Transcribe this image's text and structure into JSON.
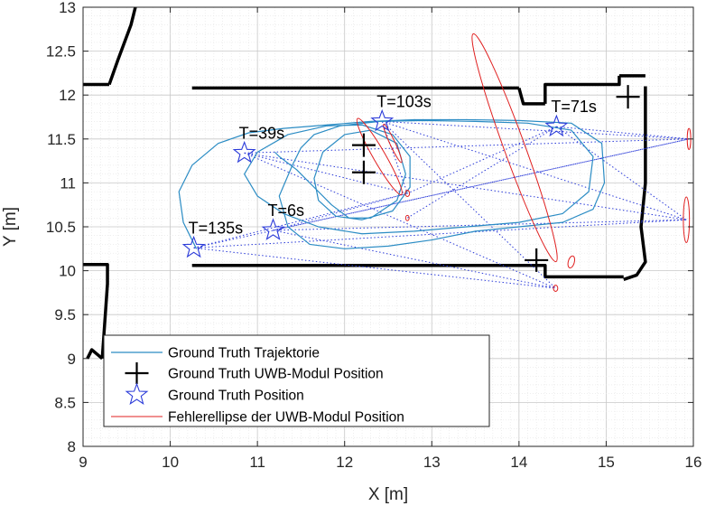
{
  "chart_data": {
    "type": "scatter",
    "xlabel": "X [m]",
    "ylabel": "Y [m]",
    "xlim": [
      9,
      16
    ],
    "ylim": [
      8,
      13
    ],
    "xticks": [
      9,
      10,
      11,
      12,
      13,
      14,
      15,
      16
    ],
    "yticks": [
      8,
      8.5,
      9,
      9.5,
      10,
      10.5,
      11,
      11.5,
      12,
      12.5,
      13
    ],
    "xtick_labels": [
      "9",
      "10",
      "11",
      "12",
      "13",
      "14",
      "15",
      "16"
    ],
    "ytick_labels": [
      "8",
      "8.5",
      "9",
      "9.5",
      "10",
      "10.5",
      "11",
      "11.5",
      "12",
      "12.5",
      "13"
    ],
    "grid": true,
    "legend_position": "bottom-left",
    "legend": [
      "Ground Truth Trajektorie",
      "Ground Truth UWB-Modul Position",
      "Ground Truth Position",
      "Fehlerellipse der UWB-Modul Position"
    ],
    "colors": {
      "trajectory": "#2b8cc4",
      "uwb_module": "#000000",
      "position_star": "#2b3bd9",
      "ellipse": "#e02020",
      "link": "#2b3bd9",
      "map": "#000000"
    },
    "series": [
      {
        "name": "Ground Truth Trajektorie",
        "kind": "line",
        "x": [
          10.3,
          10.15,
          10.1,
          10.25,
          10.55,
          10.9,
          11.3,
          11.8,
          12.3,
          12.8,
          13.4,
          14.0,
          14.6,
          14.95,
          14.98,
          14.85,
          14.5,
          14.0,
          13.5,
          13.0,
          12.5,
          12.0,
          11.6,
          11.35,
          11.25,
          11.4,
          11.5,
          11.65,
          11.95,
          12.4,
          12.9,
          13.5,
          14.1,
          14.6,
          14.85,
          14.8,
          14.5,
          14.0,
          13.4,
          12.8,
          12.2,
          11.7,
          11.3,
          11.0,
          10.85,
          11.0,
          11.35,
          11.8,
          12.2,
          12.55,
          12.75,
          12.75,
          12.55,
          12.2,
          11.9,
          11.7,
          11.65,
          11.75,
          12.0,
          12.3,
          12.6,
          12.7,
          12.6,
          12.3,
          12.05,
          11.85,
          11.65,
          11.45,
          11.25,
          11.2
        ],
        "y": [
          10.25,
          10.55,
          10.9,
          11.2,
          11.45,
          11.57,
          11.62,
          11.66,
          11.7,
          11.72,
          11.72,
          11.71,
          11.68,
          11.45,
          11.0,
          10.7,
          10.55,
          10.5,
          10.45,
          10.35,
          10.28,
          10.25,
          10.3,
          10.5,
          10.85,
          11.2,
          11.4,
          11.55,
          11.65,
          11.7,
          11.71,
          11.7,
          11.68,
          11.6,
          11.3,
          10.9,
          10.65,
          10.55,
          10.5,
          10.45,
          10.42,
          10.5,
          10.65,
          10.85,
          11.1,
          11.35,
          11.55,
          11.65,
          11.66,
          11.55,
          11.3,
          10.95,
          10.68,
          10.58,
          10.62,
          10.8,
          11.05,
          11.35,
          11.55,
          11.6,
          11.45,
          11.1,
          10.8,
          10.6,
          10.6,
          10.75,
          10.95,
          11.15,
          11.3,
          11.35
        ]
      },
      {
        "name": "Ground Truth UWB-Modul Position",
        "kind": "marker-plus",
        "x": [
          12.22,
          12.22,
          15.25,
          14.2
        ],
        "y": [
          11.43,
          11.12,
          11.98,
          10.12
        ]
      },
      {
        "name": "Ground Truth Position",
        "kind": "marker-star",
        "x": [
          11.18,
          10.85,
          14.43,
          12.43,
          10.27
        ],
        "y": [
          10.46,
          11.34,
          11.64,
          11.7,
          10.26
        ]
      },
      {
        "name": "Fehlerellipse der UWB-Modul Position",
        "kind": "ellipse",
        "cx": [
          13.95,
          12.4,
          15.92,
          12.55,
          15.95,
          14.6,
          14.42,
          12.72,
          12.72
        ],
        "cy": [
          11.4,
          11.3,
          10.58,
          11.45,
          11.5,
          10.1,
          9.8,
          10.88,
          10.6
        ],
        "rx": [
          0.12,
          0.07,
          0.035,
          0.03,
          0.02,
          0.035,
          0.025,
          0.025,
          0.02
        ],
        "ry": [
          1.38,
          0.5,
          0.26,
          0.24,
          0.12,
          0.07,
          0.035,
          0.035,
          0.03
        ],
        "angle_deg": [
          -20,
          -30,
          0,
          -25,
          0,
          15,
          0,
          0,
          0
        ]
      }
    ],
    "annotations": [
      {
        "text": "T=6s",
        "x": 11.18,
        "y": 10.46
      },
      {
        "text": "T=39s",
        "x": 10.85,
        "y": 11.34
      },
      {
        "text": "T=71s",
        "x": 14.43,
        "y": 11.64
      },
      {
        "text": "T=103s",
        "x": 12.43,
        "y": 11.7
      },
      {
        "text": "T=135s",
        "x": 10.27,
        "y": 10.26
      }
    ],
    "links": {
      "from": [
        [
          11.18,
          10.46
        ],
        [
          10.85,
          11.34
        ],
        [
          14.43,
          11.64
        ],
        [
          12.43,
          11.7
        ],
        [
          10.27,
          10.26
        ],
        [
          11.18,
          10.46
        ],
        [
          10.85,
          11.34
        ],
        [
          14.43,
          11.64
        ],
        [
          12.43,
          11.7
        ],
        [
          10.27,
          10.26
        ],
        [
          11.18,
          10.46
        ],
        [
          10.85,
          11.34
        ],
        [
          12.43,
          11.7
        ],
        [
          10.27,
          10.26
        ],
        [
          11.18,
          10.46
        ],
        [
          10.85,
          11.34
        ],
        [
          14.43,
          11.64
        ],
        [
          12.43,
          11.7
        ],
        [
          10.27,
          10.26
        ],
        [
          14.43,
          11.64
        ]
      ],
      "to": [
        [
          15.92,
          10.58
        ],
        [
          15.92,
          10.58
        ],
        [
          15.92,
          10.58
        ],
        [
          15.92,
          10.58
        ],
        [
          15.92,
          10.58
        ],
        [
          15.95,
          11.5
        ],
        [
          15.95,
          11.5
        ],
        [
          15.95,
          11.5
        ],
        [
          15.95,
          11.5
        ],
        [
          15.95,
          11.5
        ],
        [
          14.42,
          9.8
        ],
        [
          14.42,
          9.8
        ],
        [
          14.42,
          9.8
        ],
        [
          14.42,
          9.8
        ],
        [
          12.72,
          10.88
        ],
        [
          12.72,
          10.88
        ],
        [
          12.72,
          10.88
        ],
        [
          12.72,
          10.88
        ],
        [
          12.72,
          10.88
        ],
        [
          12.72,
          10.6
        ]
      ]
    },
    "map_walls": [
      {
        "x": [
          10.25,
          14.0
        ],
        "y": [
          12.08,
          12.08
        ]
      },
      {
        "x": [
          14.0,
          14.05,
          14.3
        ],
        "y": [
          12.08,
          11.9,
          11.9
        ]
      },
      {
        "x": [
          14.3,
          14.3,
          15.15,
          15.15
        ],
        "y": [
          11.9,
          12.12,
          12.12,
          12.22
        ]
      },
      {
        "x": [
          15.15,
          15.45
        ],
        "y": [
          12.22,
          12.22
        ]
      },
      {
        "x": [
          15.45,
          15.45,
          15.4,
          15.45,
          15.35,
          15.2
        ],
        "y": [
          12.1,
          11.0,
          10.5,
          10.1,
          9.95,
          9.9
        ]
      },
      {
        "x": [
          10.25,
          14.3,
          14.3,
          15.2
        ],
        "y": [
          10.06,
          10.06,
          9.93,
          9.93
        ]
      },
      {
        "x": [
          9.0,
          9.3
        ],
        "y": [
          12.12,
          12.12
        ]
      },
      {
        "x": [
          9.3,
          9.4,
          9.55,
          9.6
        ],
        "y": [
          12.12,
          12.4,
          12.8,
          13.0
        ]
      },
      {
        "x": [
          9.0,
          9.28,
          9.28,
          9.22
        ],
        "y": [
          10.07,
          10.07,
          9.85,
          9.0
        ]
      },
      {
        "x": [
          9.22,
          9.1,
          9.05
        ],
        "y": [
          9.0,
          9.1,
          9.0
        ]
      }
    ]
  }
}
